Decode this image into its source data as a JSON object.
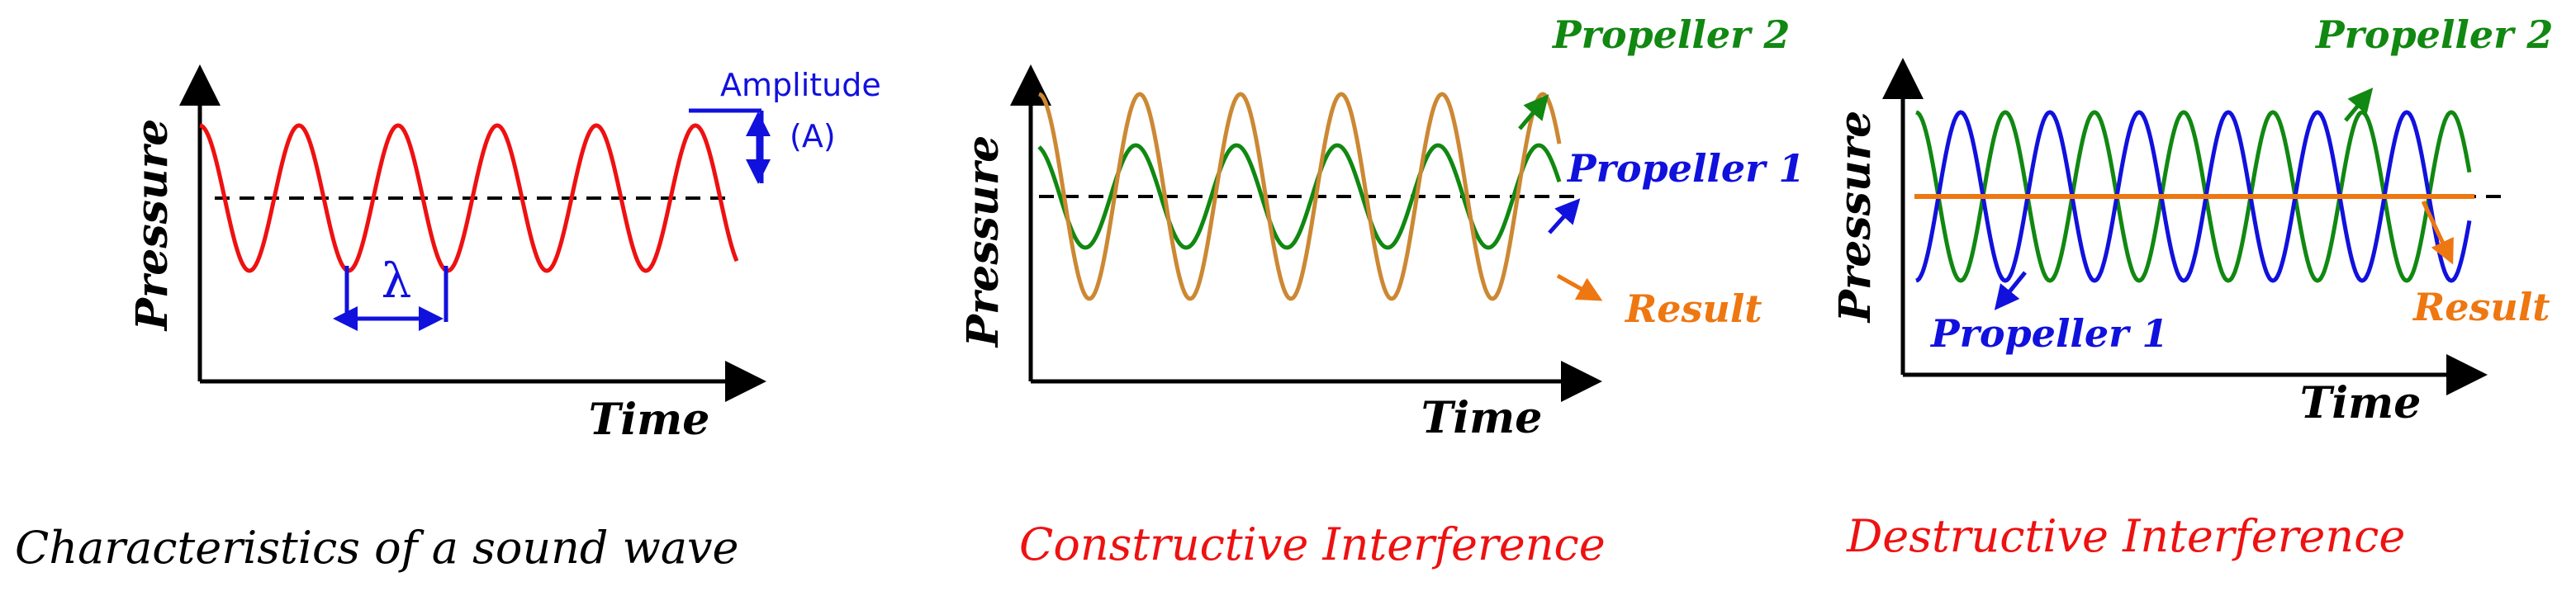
{
  "colors": {
    "axis": "#000000",
    "sound_wave": "#ee1111",
    "propeller_1": "#1111dd",
    "propeller_2": "#118811",
    "result": "#ee7711",
    "constructive_result": "#cc8833",
    "caption_red": "#ee1111"
  },
  "panels": [
    {
      "caption": "Characteristics of a sound wave",
      "x_axis_label": "Time",
      "y_axis_label": "Pressure",
      "annotations": {
        "amplitude_line1": "Amplitude",
        "amplitude_line2": "(A)",
        "wavelength_symbol": "λ"
      }
    },
    {
      "caption": "Constructive Interference",
      "x_axis_label": "Time",
      "y_axis_label": "Pressure",
      "annotations": {
        "propeller_2": "Propeller 2",
        "propeller_1": "Propeller 1",
        "result": "Result"
      }
    },
    {
      "caption": "Destructive Interference",
      "x_axis_label": "Time",
      "y_axis_label": "Pressure",
      "annotations": {
        "propeller_2": "Propeller 2",
        "propeller_1": "Propeller 1",
        "result": "Result"
      }
    }
  ]
}
